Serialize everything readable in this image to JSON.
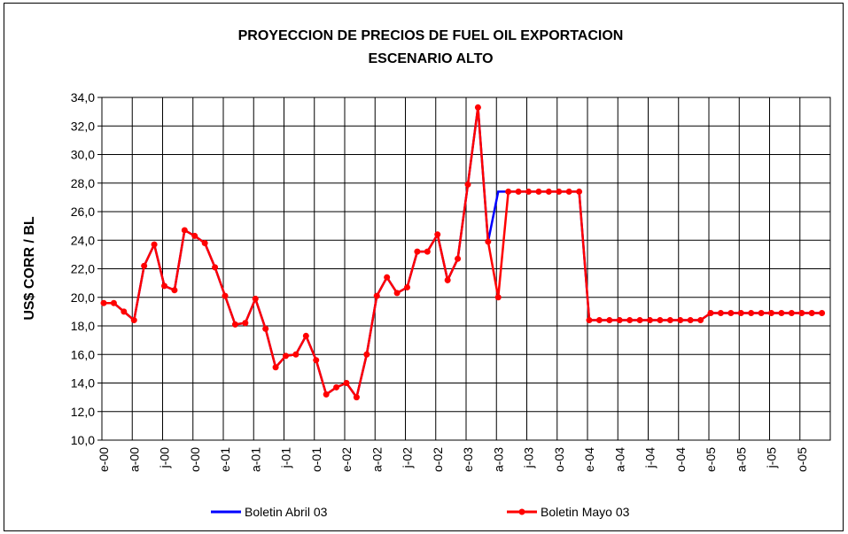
{
  "chart_data": {
    "type": "line",
    "title": "PROYECCION DE PRECIOS DE FUEL OIL EXPORTACION",
    "subtitle": "ESCENARIO ALTO",
    "y_label": "US$ CORR / BL",
    "categories": [
      "e-00",
      null,
      null,
      "a-00",
      null,
      null,
      "j-00",
      null,
      null,
      "o-00",
      null,
      null,
      "e-01",
      null,
      null,
      "a-01",
      null,
      null,
      "j-01",
      null,
      null,
      "o-01",
      null,
      null,
      "e-02",
      null,
      null,
      "a-02",
      null,
      null,
      "j-02",
      null,
      null,
      "o-02",
      null,
      null,
      "e-03",
      null,
      null,
      "a-03",
      null,
      null,
      "j-03",
      null,
      null,
      "o-03",
      null,
      null,
      "e-04",
      null,
      null,
      "a-04",
      null,
      null,
      "j-04",
      null,
      null,
      "o-04",
      null,
      null,
      "e-05",
      null,
      null,
      "a-05",
      null,
      null,
      "j-05",
      null,
      null,
      "o-05",
      null,
      null
    ],
    "series": [
      {
        "name": "Boletin Abril 03",
        "color": "#0000ff",
        "markers": false,
        "values": [
          19.6,
          19.6,
          19.0,
          18.4,
          22.2,
          23.7,
          20.8,
          20.5,
          24.7,
          24.3,
          23.8,
          22.1,
          20.1,
          18.1,
          18.2,
          19.9,
          17.8,
          15.1,
          15.9,
          16.0,
          17.3,
          15.6,
          13.2,
          13.7,
          14.0,
          13.0,
          16.0,
          20.1,
          21.4,
          20.3,
          20.7,
          23.2,
          23.2,
          24.4,
          21.2,
          22.7,
          27.9,
          33.3,
          23.9,
          27.4,
          27.4,
          27.4,
          27.4,
          27.4,
          27.4,
          27.4,
          27.4,
          27.4,
          18.4,
          18.4,
          18.4,
          18.4,
          18.4,
          18.4,
          18.4,
          18.4,
          18.4,
          18.4,
          18.4,
          18.4,
          18.9,
          18.9,
          18.9,
          18.9,
          18.9,
          18.9,
          18.9,
          18.9,
          18.9,
          18.9,
          18.9,
          18.9
        ]
      },
      {
        "name": "Boletin Mayo 03",
        "color": "#ff0000",
        "markers": true,
        "values": [
          19.6,
          19.6,
          19.0,
          18.4,
          22.2,
          23.7,
          20.8,
          20.5,
          24.7,
          24.3,
          23.8,
          22.1,
          20.1,
          18.1,
          18.2,
          19.9,
          17.8,
          15.1,
          15.9,
          16.0,
          17.3,
          15.6,
          13.2,
          13.7,
          14.0,
          13.0,
          16.0,
          20.1,
          21.4,
          20.3,
          20.7,
          23.2,
          23.2,
          24.4,
          21.2,
          22.7,
          27.9,
          33.3,
          23.9,
          20.0,
          27.4,
          27.4,
          27.4,
          27.4,
          27.4,
          27.4,
          27.4,
          27.4,
          18.4,
          18.4,
          18.4,
          18.4,
          18.4,
          18.4,
          18.4,
          18.4,
          18.4,
          18.4,
          18.4,
          18.4,
          18.9,
          18.9,
          18.9,
          18.9,
          18.9,
          18.9,
          18.9,
          18.9,
          18.9,
          18.9,
          18.9,
          18.9
        ]
      }
    ],
    "ylim": [
      10,
      34
    ],
    "yticks": [
      {
        "value": 10,
        "label": "10,0"
      },
      {
        "value": 12,
        "label": "12,0"
      },
      {
        "value": 14,
        "label": "14,0"
      },
      {
        "value": 16,
        "label": "16,0"
      },
      {
        "value": 18,
        "label": "18,0"
      },
      {
        "value": 20,
        "label": "20,0"
      },
      {
        "value": 22,
        "label": "22,0"
      },
      {
        "value": 24,
        "label": "24,0"
      },
      {
        "value": 26,
        "label": "26,0"
      },
      {
        "value": 28,
        "label": "28,0"
      },
      {
        "value": 30,
        "label": "30,0"
      },
      {
        "value": 32,
        "label": "32,0"
      },
      {
        "value": 34,
        "label": "34,0"
      }
    ],
    "grid": true,
    "legend": "bottom"
  }
}
